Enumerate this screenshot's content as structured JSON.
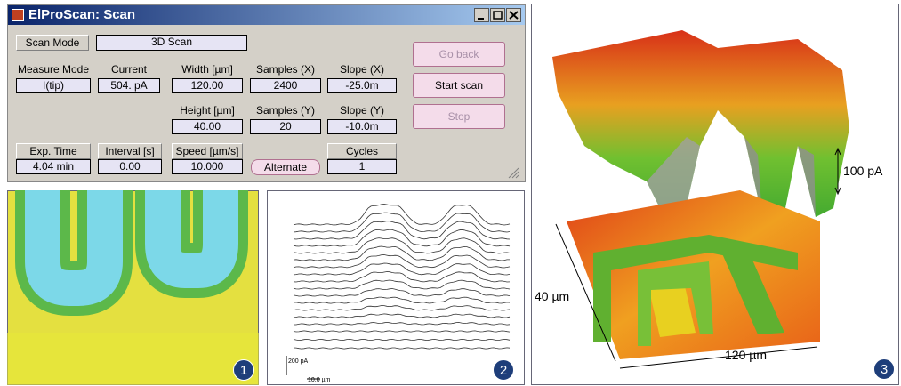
{
  "window": {
    "title": "ElProScan: Scan"
  },
  "fields": [
    {
      "label": "Scan Mode",
      "value": "3D Scan"
    },
    {
      "label": "Measure Mode",
      "value": "I(tip)"
    },
    {
      "label": "Current",
      "value": "504. pA"
    },
    {
      "label": "Width [µm]",
      "value": "120.00"
    },
    {
      "label": "Samples (X)",
      "value": "2400"
    },
    {
      "label": "Slope (X)",
      "value": "-25.0m"
    },
    {
      "label": "Height [µm]",
      "value": "40.00"
    },
    {
      "label": "Samples (Y)",
      "value": "20"
    },
    {
      "label": "Slope (Y)",
      "value": "-10.0m"
    },
    {
      "label": "Exp. Time",
      "value": "4.04 min"
    },
    {
      "label": "Interval [s]",
      "value": "0.00"
    },
    {
      "label": "Speed [µm/s]",
      "value": "10.000"
    },
    {
      "label": "Cycles",
      "value": "1"
    }
  ],
  "buttons": [
    "Go back",
    "Start scan",
    "Stop",
    "Alternate"
  ],
  "panels": [
    {
      "badge": "1"
    },
    {
      "badge": "2",
      "scale_y": "200 pA",
      "scale_x": "10.0 µm"
    },
    {
      "badge": "3",
      "z_scale": "100 pA",
      "y_size": "40 µm",
      "x_size": "120 µm"
    }
  ]
}
